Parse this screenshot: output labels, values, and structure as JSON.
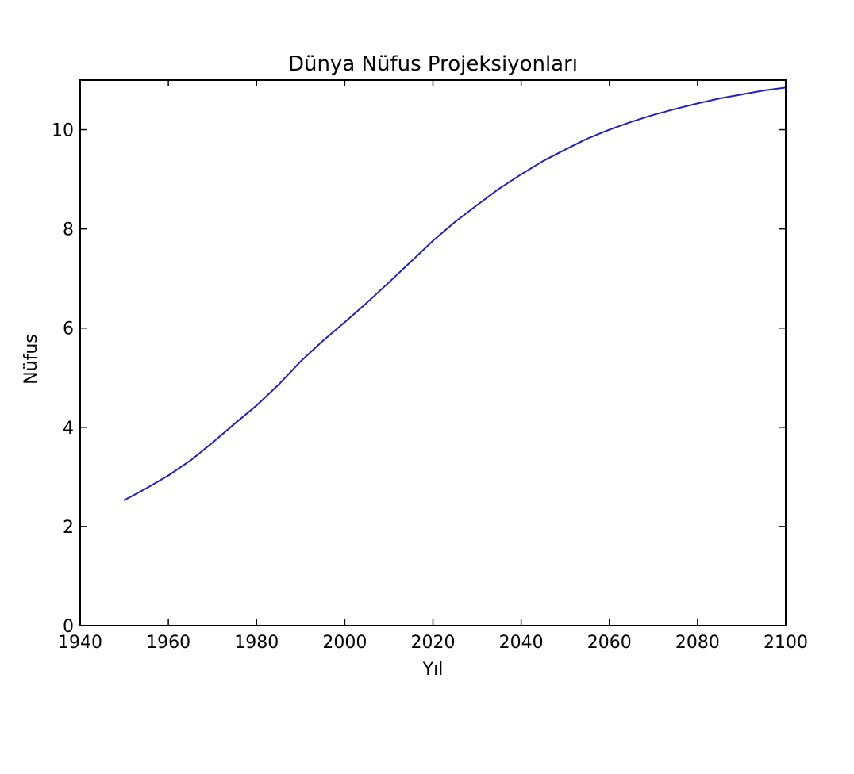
{
  "chart_data": {
    "type": "line",
    "title": "Dünya Nüfus Projeksiyonları",
    "xlabel": "Yıl",
    "ylabel": "Nüfus",
    "xlim": [
      1940,
      2100
    ],
    "ylim": [
      0,
      11
    ],
    "xticks": [
      "1940",
      "1960",
      "1980",
      "2000",
      "2020",
      "2040",
      "2060",
      "2080",
      "2100"
    ],
    "yticks": [
      "0",
      "2",
      "4",
      "6",
      "8",
      "10"
    ],
    "grid": false,
    "legend": "none",
    "series": [
      {
        "color": "#1f1fbf",
        "x": [
          1950,
          1955,
          1960,
          1965,
          1970,
          1975,
          1980,
          1985,
          1990,
          1995,
          2000,
          2005,
          2010,
          2015,
          2020,
          2025,
          2030,
          2035,
          2040,
          2045,
          2050,
          2055,
          2060,
          2065,
          2070,
          2075,
          2080,
          2085,
          2090,
          2095,
          2100
        ],
        "y": [
          2.53,
          2.77,
          3.03,
          3.33,
          3.69,
          4.07,
          4.44,
          4.86,
          5.33,
          5.74,
          6.12,
          6.51,
          6.92,
          7.34,
          7.76,
          8.14,
          8.48,
          8.81,
          9.1,
          9.37,
          9.6,
          9.82,
          10.0,
          10.16,
          10.3,
          10.42,
          10.53,
          10.63,
          10.71,
          10.79,
          10.85
        ]
      }
    ]
  }
}
